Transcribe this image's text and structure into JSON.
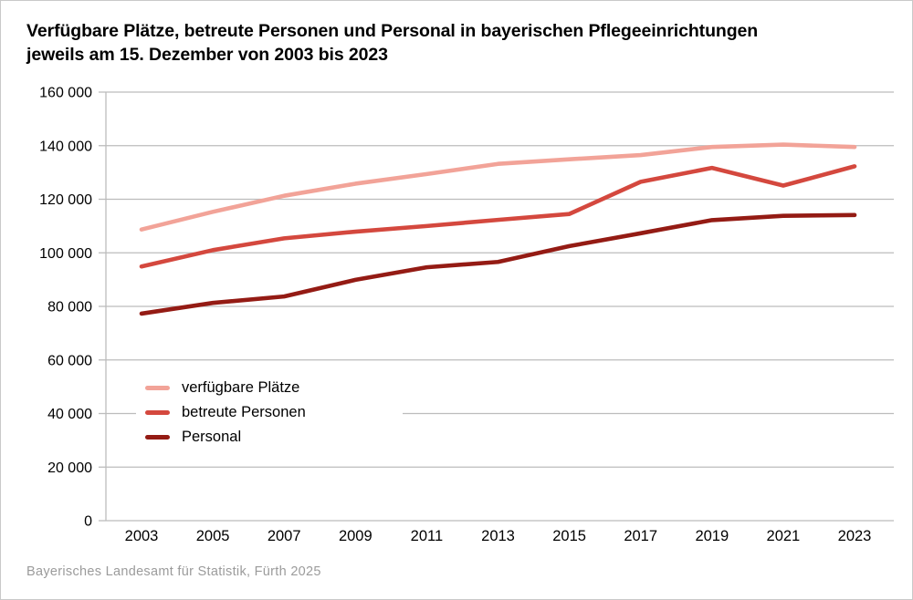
{
  "page": {
    "title_line1": "Verfügbare Plätze, betreute Personen und Personal in bayerischen Pflegeeinrichtungen",
    "title_line2": "jeweils am 15. Dezember von 2003 bis 2023",
    "footer": "Bayerisches Landesamt für Statistik, Fürth 2025"
  },
  "chart_data": {
    "type": "line",
    "title": "Verfügbare Plätze, betreute Personen und Personal in bayerischen Pflegeeinrichtungen jeweils am 15. Dezember von 2003 bis 2023",
    "x": [
      2003,
      2005,
      2007,
      2009,
      2011,
      2013,
      2015,
      2017,
      2019,
      2021,
      2023
    ],
    "series": [
      {
        "name": "verfügbare Plätze",
        "color": "#f2a398",
        "values": [
          108700,
          115300,
          121300,
          125800,
          129400,
          133200,
          134900,
          136500,
          139500,
          140400,
          139500
        ]
      },
      {
        "name": "betreute Personen",
        "color": "#d4483e",
        "values": [
          94900,
          101000,
          105400,
          107900,
          110000,
          112300,
          114500,
          126500,
          131700,
          125100,
          132300
        ]
      },
      {
        "name": "Personal",
        "color": "#941b14",
        "values": [
          77300,
          81300,
          83700,
          89900,
          94600,
          96600,
          102500,
          107300,
          112200,
          113800,
          114100
        ]
      }
    ],
    "xlabel": "",
    "ylabel": "",
    "ylim": [
      0,
      160000
    ],
    "ytick_step": 20000,
    "ytick_labels": [
      "0",
      "20 000",
      "40 000",
      "60 000",
      "80 000",
      "100 000",
      "120 000",
      "140 000",
      "160 000"
    ],
    "grid": "horizontal",
    "legend_position": "inside-left-middle"
  },
  "colors": {
    "grid": "#bcbcbc",
    "axis": "#bcbcbc",
    "axis_text": "#000000",
    "footer_text": "#9b9b9b",
    "border": "#c9c9c9"
  }
}
